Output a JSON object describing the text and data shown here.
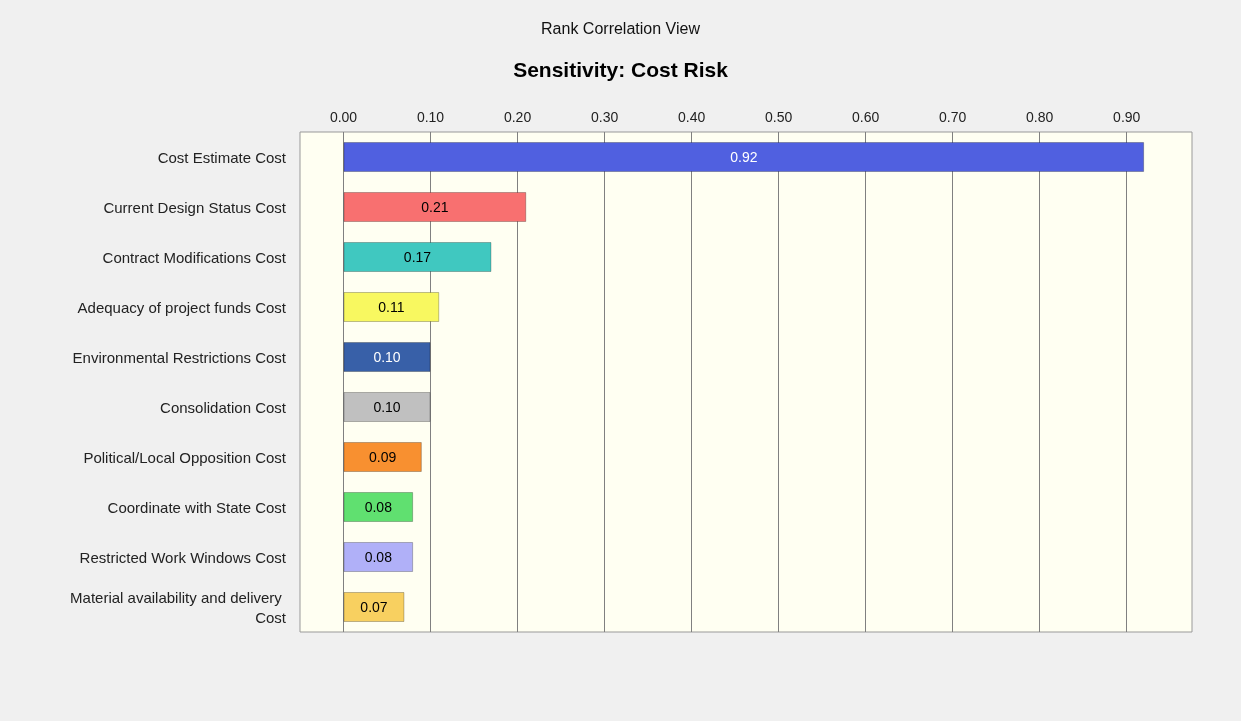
{
  "chart_data": {
    "type": "bar",
    "orientation": "horizontal",
    "title": "Sensitivity: Cost Risk",
    "subtitle": "Rank Correlation View",
    "categories": [
      "Cost Estimate Cost",
      "Current Design Status Cost",
      "Contract Modifications Cost",
      "Adequacy of project funds Cost",
      "Environmental Restrictions Cost",
      "Consolidation Cost",
      "Political/Local Opposition Cost",
      "Coordinate with State Cost",
      "Restricted Work Windows Cost",
      "Material availability and delivery Cost"
    ],
    "values": [
      0.92,
      0.21,
      0.17,
      0.11,
      0.1,
      0.1,
      0.09,
      0.08,
      0.08,
      0.07
    ],
    "colors": [
      "#5060e0",
      "#f87070",
      "#40c8c0",
      "#f8f860",
      "#3860a8",
      "#c0c0c0",
      "#f89030",
      "#60e070",
      "#b0b0f8",
      "#f8d060"
    ],
    "xlim": [
      -0.05,
      0.975
    ],
    "xticks": [
      {
        "value": 0,
        "label": "0.00"
      },
      {
        "value": 0.1,
        "label": "0.10"
      },
      {
        "value": 0.2,
        "label": "0.20"
      },
      {
        "value": 0.3,
        "label": "0.30"
      },
      {
        "value": 0.4,
        "label": "0.40"
      },
      {
        "value": 0.5,
        "label": "0.50"
      },
      {
        "value": 0.6,
        "label": "0.60"
      },
      {
        "value": 0.7,
        "label": "0.70"
      },
      {
        "value": 0.8,
        "label": "0.80"
      },
      {
        "value": 0.9,
        "label": "0.90"
      }
    ],
    "value_labels": [
      "0.92",
      "0.21",
      "0.17",
      "0.11",
      "0.10",
      "0.10",
      "0.09",
      "0.08",
      "0.08",
      "0.07"
    ],
    "grid": "x"
  }
}
